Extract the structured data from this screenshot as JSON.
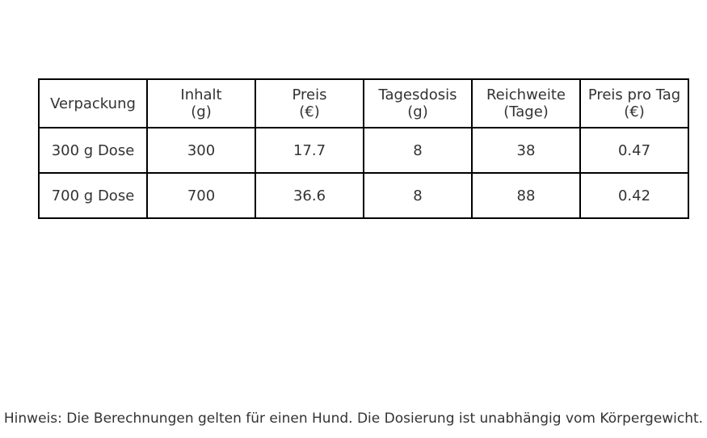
{
  "chart_data": {
    "type": "table",
    "columns": [
      "Verpackung",
      "Inhalt\n(g)",
      "Preis\n(€)",
      "Tagesdosis\n(g)",
      "Reichweite\n(Tage)",
      "Preis pro Tag\n(€)"
    ],
    "rows": [
      [
        "300 g Dose",
        "300",
        "17.7",
        "8",
        "38",
        "0.47"
      ],
      [
        "700 g Dose",
        "700",
        "36.6",
        "8",
        "88",
        "0.42"
      ]
    ]
  },
  "note": "Hinweis: Die Berechnungen gelten für einen Hund. Die Dosierung ist unabhängig vom Körpergewicht."
}
